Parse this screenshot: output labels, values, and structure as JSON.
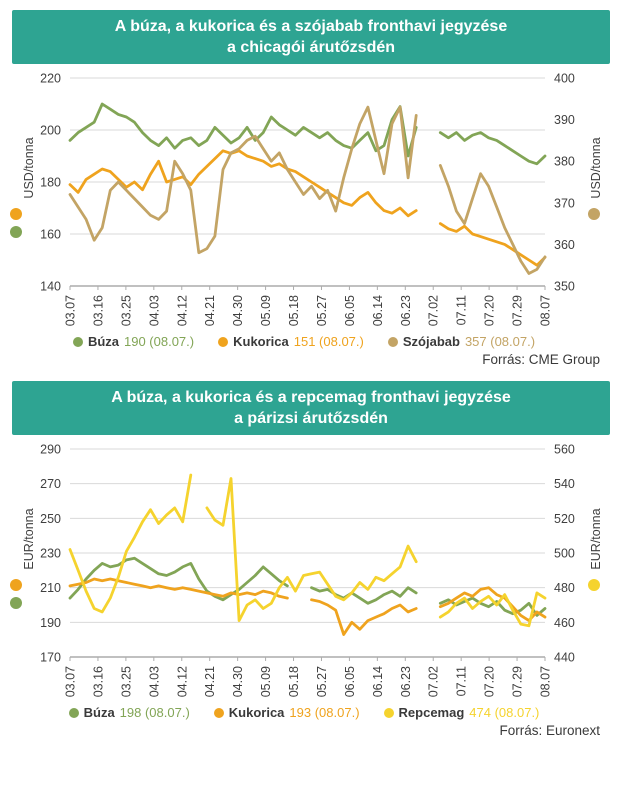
{
  "chart_data": [
    {
      "type": "line",
      "title": "A búza, a kukorica és a szójabab fronthavi jegyzése a chicagói árutőzsdén",
      "title_line1": "A búza, a kukorica és a szójabab fronthavi jegyzése",
      "title_line2": "a chicagói árutőzsdén",
      "header_color": "#2EA492",
      "source": "Forrás: CME Group",
      "legend_position": "bottom",
      "grid": true,
      "x_tick_labels": [
        "03.07",
        "03.16",
        "03.25",
        "04.03",
        "04.12",
        "04.21",
        "04.30",
        "05.09",
        "05.18",
        "05.27",
        "06.05",
        "06.14",
        "06.23",
        "07.02",
        "07.11",
        "07.20",
        "07.29",
        "08.07"
      ],
      "left_axis": {
        "label": "USD/tonna",
        "min": 140,
        "max": 220,
        "ticks": [
          220,
          200,
          180,
          160,
          140
        ],
        "dot_colors": [
          "#EFA31E",
          "#82A556"
        ]
      },
      "right_axis": {
        "label": "USD/tonna",
        "min": 350,
        "max": 400,
        "ticks": [
          400,
          390,
          380,
          370,
          360,
          350
        ],
        "dot_colors": [
          "#C3A465"
        ]
      },
      "series": [
        {
          "name": "Búza",
          "axis": "left",
          "color": "#82A556",
          "last_value": "190",
          "last_date": "(08.07.)",
          "values": [
            196,
            199,
            201,
            203,
            210,
            208,
            206,
            205,
            203,
            199,
            196,
            194,
            197,
            193,
            196,
            197,
            194,
            196,
            201,
            198,
            195,
            197,
            201,
            196,
            199,
            205,
            202,
            200,
            198,
            201,
            199,
            197,
            199,
            196,
            194,
            193,
            196,
            199,
            192,
            194,
            204,
            209,
            190,
            201,
            null,
            null,
            199,
            197,
            199,
            196,
            198,
            199,
            197,
            196,
            194,
            192,
            190,
            188,
            187,
            190
          ]
        },
        {
          "name": "Kukorica",
          "axis": "left",
          "color": "#EFA31E",
          "last_value": "151",
          "last_date": "(08.07.)",
          "values": [
            179,
            176,
            181,
            183,
            185,
            184,
            181,
            178,
            180,
            177,
            183,
            188,
            180,
            181,
            182,
            179,
            183,
            186,
            189,
            192,
            191,
            192,
            190,
            189,
            188,
            186,
            187,
            185,
            184,
            182,
            180,
            178,
            176,
            174,
            172,
            171,
            174,
            176,
            172,
            169,
            168,
            170,
            167,
            169,
            null,
            null,
            164,
            162,
            161,
            163,
            160,
            159,
            158,
            157,
            156,
            154,
            152,
            150,
            148,
            151
          ]
        },
        {
          "name": "Szójabab",
          "axis": "right",
          "color": "#C3A465",
          "last_value": "357",
          "last_date": "(08.07.)",
          "values": [
            372,
            369,
            366,
            361,
            364,
            373,
            375,
            373,
            371,
            369,
            367,
            366,
            368,
            380,
            377,
            373,
            358,
            359,
            362,
            378,
            382,
            383,
            385,
            386,
            383,
            380,
            382,
            378,
            375,
            372,
            374,
            371,
            373,
            368,
            376,
            383,
            389,
            393,
            385,
            377,
            389,
            393,
            376,
            391,
            null,
            null,
            379,
            374,
            368,
            365,
            371,
            377,
            374,
            369,
            364,
            360,
            356,
            353,
            354,
            357
          ]
        }
      ]
    },
    {
      "type": "line",
      "title": "A búza, a kukorica és a repcemag fronthavi jegyzése a párizsi árutőzsdén",
      "title_line1": "A búza, a kukorica és a repcemag fronthavi jegyzése",
      "title_line2": "a párizsi árutőzsdén",
      "header_color": "#2EA492",
      "source": "Forrás: Euronext",
      "legend_position": "bottom",
      "grid": true,
      "x_tick_labels": [
        "03.07",
        "03.16",
        "03.25",
        "04.03",
        "04.12",
        "04.21",
        "04.30",
        "05.09",
        "05.18",
        "05.27",
        "06.05",
        "06.14",
        "06.23",
        "07.02",
        "07.11",
        "07.20",
        "07.29",
        "08.07"
      ],
      "left_axis": {
        "label": "EUR/tonna",
        "min": 170,
        "max": 290,
        "ticks": [
          290,
          270,
          250,
          230,
          210,
          190,
          170
        ],
        "dot_colors": [
          "#EFA31E",
          "#82A556"
        ]
      },
      "right_axis": {
        "label": "EUR/tonna",
        "min": 440,
        "max": 560,
        "ticks": [
          560,
          540,
          520,
          500,
          480,
          460,
          440
        ],
        "dot_colors": [
          "#F5D32E"
        ]
      },
      "series": [
        {
          "name": "Búza",
          "axis": "left",
          "color": "#82A556",
          "last_value": "198",
          "last_date": "(08.07.)",
          "values": [
            204,
            209,
            215,
            220,
            224,
            222,
            223,
            226,
            227,
            224,
            221,
            218,
            217,
            219,
            222,
            224,
            215,
            208,
            205,
            203,
            206,
            209,
            213,
            217,
            222,
            218,
            214,
            211,
            null,
            null,
            210,
            208,
            209,
            206,
            204,
            207,
            204,
            201,
            203,
            206,
            208,
            205,
            210,
            207,
            null,
            null,
            201,
            203,
            200,
            202,
            204,
            201,
            199,
            202,
            197,
            195,
            197,
            201,
            194,
            198
          ]
        },
        {
          "name": "Kukorica",
          "axis": "left",
          "color": "#EFA31E",
          "last_value": "193",
          "last_date": "(08.07.)",
          "values": [
            211,
            212,
            213,
            215,
            214,
            215,
            214,
            213,
            212,
            211,
            210,
            211,
            210,
            209,
            210,
            209,
            208,
            207,
            206,
            205,
            207,
            206,
            207,
            206,
            208,
            207,
            205,
            204,
            null,
            null,
            203,
            202,
            200,
            197,
            183,
            190,
            186,
            191,
            193,
            195,
            198,
            200,
            196,
            198,
            null,
            null,
            199,
            201,
            204,
            207,
            205,
            209,
            210,
            206,
            204,
            199,
            194,
            191,
            196,
            193
          ]
        },
        {
          "name": "Repcemag",
          "axis": "right",
          "color": "#F5D32E",
          "last_value": "474",
          "last_date": "(08.07.)",
          "values": [
            502,
            490,
            478,
            468,
            466,
            474,
            486,
            501,
            509,
            518,
            525,
            517,
            522,
            526,
            518,
            545,
            null,
            526,
            519,
            516,
            543,
            461,
            470,
            473,
            468,
            471,
            480,
            486,
            478,
            487,
            488,
            489,
            482,
            475,
            473,
            477,
            483,
            479,
            486,
            484,
            488,
            492,
            504,
            495,
            null,
            null,
            463,
            466,
            471,
            474,
            468,
            472,
            475,
            470,
            476,
            467,
            459,
            458,
            477,
            474
          ]
        }
      ]
    }
  ]
}
